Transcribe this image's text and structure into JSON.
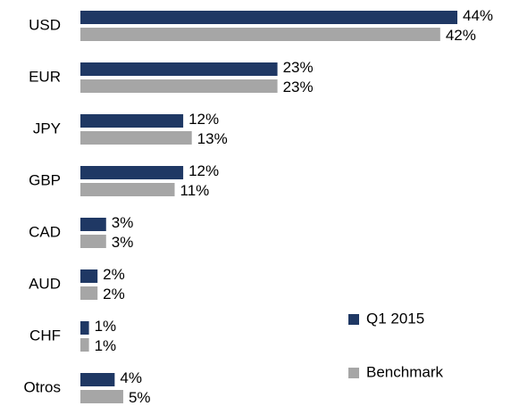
{
  "chart_data": {
    "type": "bar",
    "orientation": "horizontal",
    "categories": [
      "USD",
      "EUR",
      "JPY",
      "GBP",
      "CAD",
      "AUD",
      "CHF",
      "Otros"
    ],
    "series": [
      {
        "name": "Q1 2015",
        "color": "#1f3864",
        "values": [
          44,
          23,
          12,
          12,
          3,
          2,
          1,
          4
        ],
        "value_labels": [
          "44%",
          "23%",
          "12%",
          "12%",
          "3%",
          "2%",
          "1%",
          "4%"
        ]
      },
      {
        "name": "Benchmark",
        "color": "#a6a6a6",
        "values": [
          42,
          23,
          13,
          11,
          3,
          2,
          1,
          5
        ],
        "value_labels": [
          "42%",
          "23%",
          "13%",
          "11%",
          "3%",
          "2%",
          "1%",
          "5%"
        ]
      }
    ],
    "legend": "bottom-right"
  }
}
